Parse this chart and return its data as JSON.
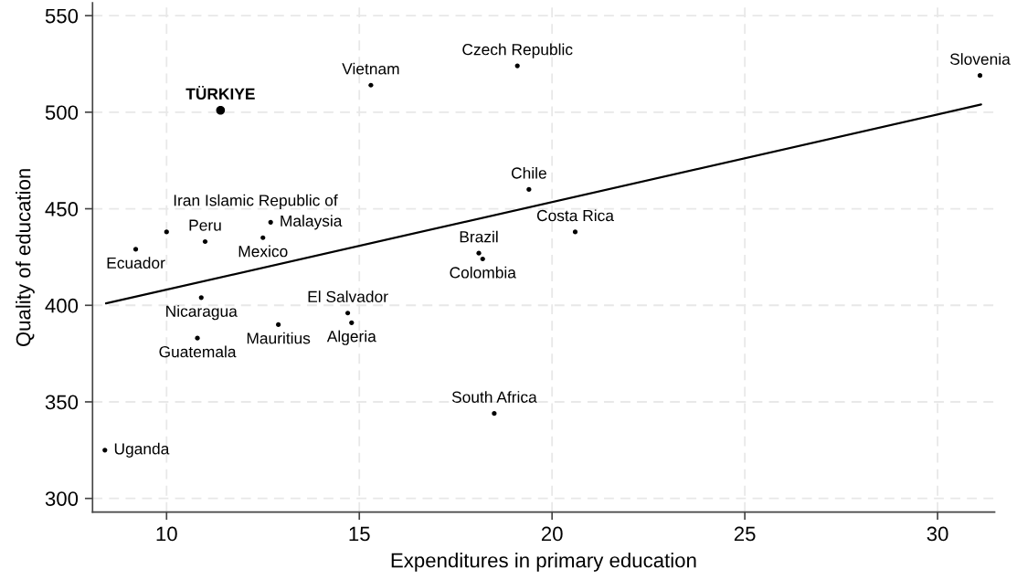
{
  "chart_data": {
    "type": "scatter",
    "xlabel": "Expenditures in primary education",
    "ylabel": "Quality of education",
    "xlim": [
      8.08,
      31.48
    ],
    "ylim": [
      292.9,
      556.6
    ],
    "xticks": [
      10,
      15,
      20,
      25,
      30
    ],
    "yticks": [
      300,
      350,
      400,
      450,
      500,
      550
    ],
    "grid": true,
    "marker": "circle",
    "series": [
      {
        "color": "#000000",
        "x": [
          19.1,
          31.1,
          15.3,
          19.4,
          10.0,
          12.7,
          20.6,
          12.5,
          11.0,
          9.2,
          18.1,
          18.2,
          10.9,
          14.7,
          14.8,
          12.9,
          10.8,
          18.5,
          8.4
        ],
        "values": [
          524,
          519,
          514,
          460,
          438,
          443,
          438,
          435,
          433,
          429,
          427,
          424,
          404,
          396,
          391,
          390,
          383,
          344,
          325
        ]
      },
      {
        "name": "TÜRKIYE",
        "color": "#000000",
        "x": [
          11.4
        ],
        "values": [
          501
        ]
      },
      {
        "type": "line",
        "color": "#000000",
        "marker": "none",
        "x": [
          8.43,
          31.13
        ],
        "values": [
          401,
          504
        ]
      }
    ],
    "annotations": [
      {
        "text": "Czech Republic",
        "x": 19.1,
        "y": 524
      },
      {
        "text": "Slovenia",
        "x": 31.1,
        "y": 519
      },
      {
        "text": "Vietnam",
        "x": 15.3,
        "y": 514
      },
      {
        "text": "Chile",
        "x": 19.4,
        "y": 460
      },
      {
        "text": "Iran Islamic Republic of",
        "x": 10.0,
        "y": 438
      },
      {
        "text": "Malaysia",
        "x": 12.7,
        "y": 443
      },
      {
        "text": "Costa Rica",
        "x": 20.6,
        "y": 438
      },
      {
        "text": "Mexico",
        "x": 12.5,
        "y": 435
      },
      {
        "text": "Peru",
        "x": 11.0,
        "y": 433
      },
      {
        "text": "Ecuador",
        "x": 9.2,
        "y": 429
      },
      {
        "text": "Brazil",
        "x": 18.1,
        "y": 427
      },
      {
        "text": "Colombia",
        "x": 18.2,
        "y": 424
      },
      {
        "text": "Nicaragua",
        "x": 10.9,
        "y": 404
      },
      {
        "text": "El Salvador",
        "x": 14.7,
        "y": 396
      },
      {
        "text": "Algeria",
        "x": 14.8,
        "y": 391
      },
      {
        "text": "Mauritius",
        "x": 12.9,
        "y": 390
      },
      {
        "text": "Guatemala",
        "x": 10.8,
        "y": 383
      },
      {
        "text": "South Africa",
        "x": 18.5,
        "y": 344
      },
      {
        "text": "Uganda",
        "x": 8.4,
        "y": 325
      }
    ]
  }
}
